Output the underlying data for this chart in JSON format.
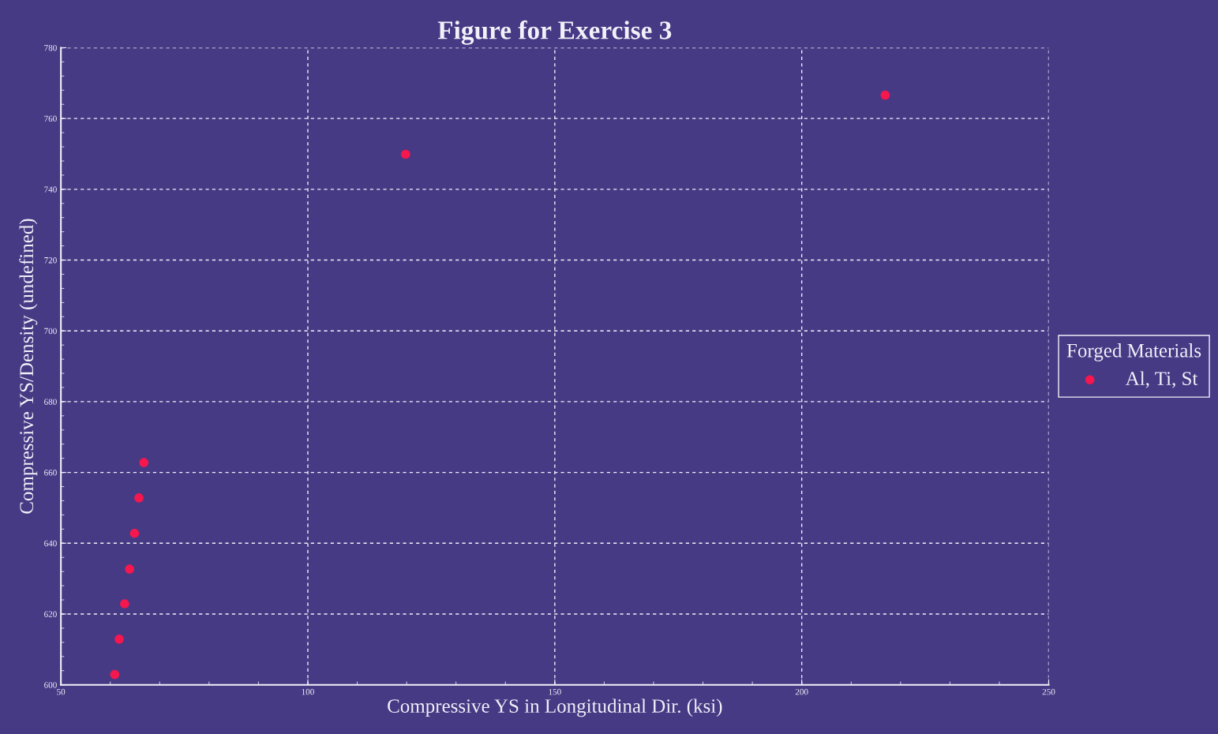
{
  "chart_data": {
    "type": "scatter",
    "title": "Figure for Exercise 3",
    "xlabel": "Compressive YS in Longitudinal Dir. (ksi)",
    "ylabel": "Compressive YS/Density (undefined)",
    "legend_title": "Forged Materials",
    "series": [
      {
        "name": "Al, Ti, St",
        "color": "#f5174d",
        "x": [
          60.9,
          61.8,
          62.9,
          63.9,
          64.9,
          65.8,
          66.8,
          119.8,
          216.9
        ],
        "values": [
          602.9,
          612.9,
          622.9,
          632.7,
          642.8,
          652.8,
          662.8,
          749.9,
          766.6
        ]
      }
    ],
    "xlim": [
      50,
      250
    ],
    "xticks": [
      50,
      100,
      150,
      200,
      250
    ],
    "ylim": [
      600,
      780
    ],
    "yticks": [
      600,
      620,
      640,
      660,
      680,
      700,
      720,
      740,
      760,
      780
    ],
    "grid": true,
    "legend": "right",
    "marker": "circle"
  }
}
